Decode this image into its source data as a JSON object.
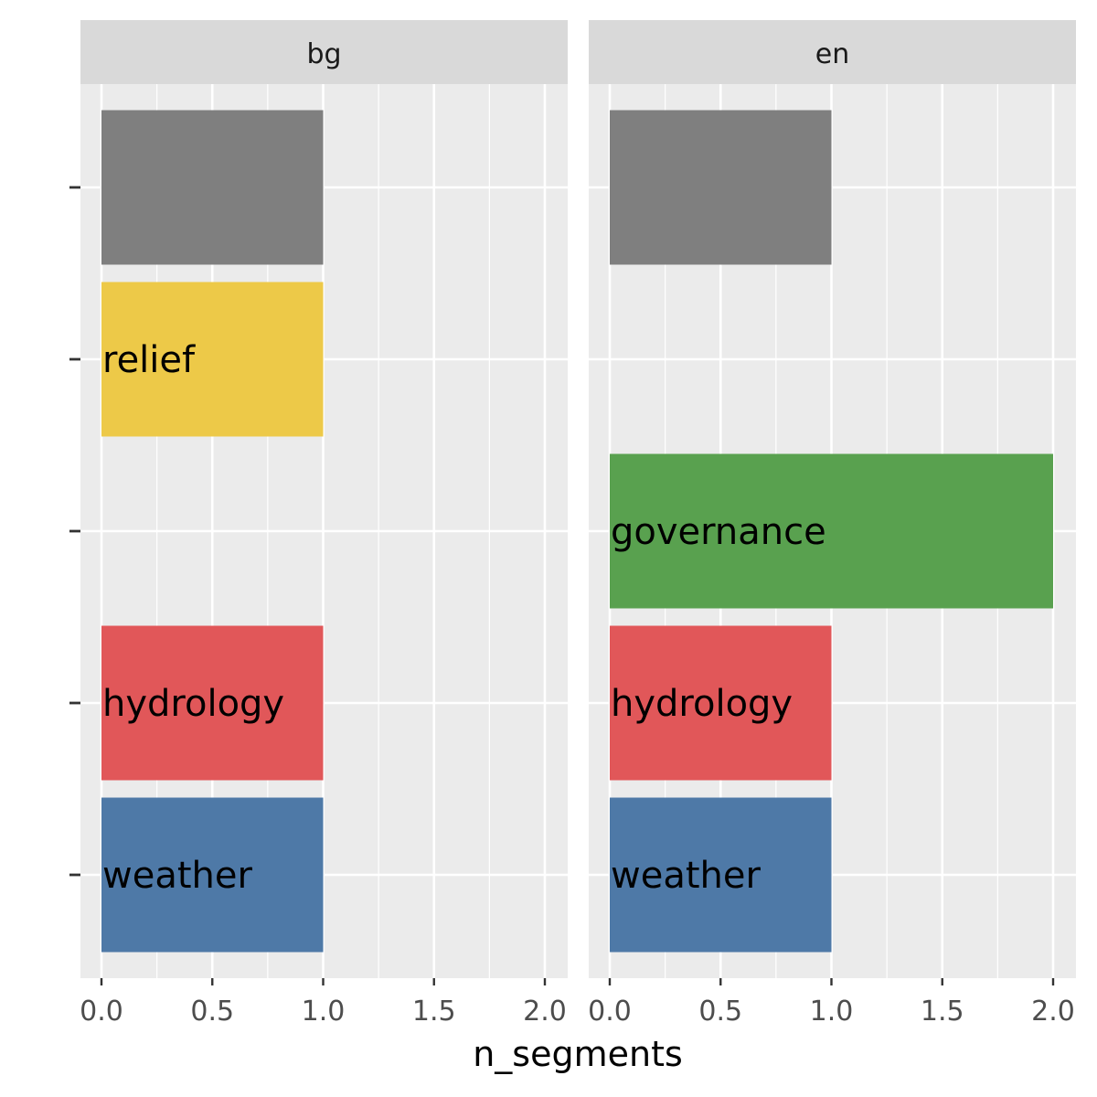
{
  "chart_data": {
    "type": "bar",
    "orientation": "horizontal",
    "xlabel": "n_segments",
    "ylabel": "",
    "xlim": [
      0,
      2.1
    ],
    "x_ticks": [
      "0.0",
      "0.5",
      "1.0",
      "1.5",
      "2.0"
    ],
    "categories": [
      "weather",
      "hydrology",
      "governance",
      "relief",
      ""
    ],
    "colors": {
      "weather": "#4e79a7",
      "hydrology": "#e15759",
      "governance": "#59a14f",
      "relief": "#edc948",
      "": "#7f7f7f"
    },
    "panels": [
      {
        "name": "bg",
        "values": [
          {
            "category": "weather",
            "value": 1,
            "label": "weather"
          },
          {
            "category": "hydrology",
            "value": 1,
            "label": "hydrology"
          },
          {
            "category": "relief",
            "value": 1,
            "label": "relief"
          },
          {
            "category": "",
            "value": 1,
            "label": ""
          }
        ]
      },
      {
        "name": "en",
        "values": [
          {
            "category": "weather",
            "value": 1,
            "label": "weather"
          },
          {
            "category": "hydrology",
            "value": 1,
            "label": "hydrology"
          },
          {
            "category": "governance",
            "value": 2,
            "label": "governance"
          },
          {
            "category": "",
            "value": 1,
            "label": ""
          }
        ]
      }
    ]
  }
}
